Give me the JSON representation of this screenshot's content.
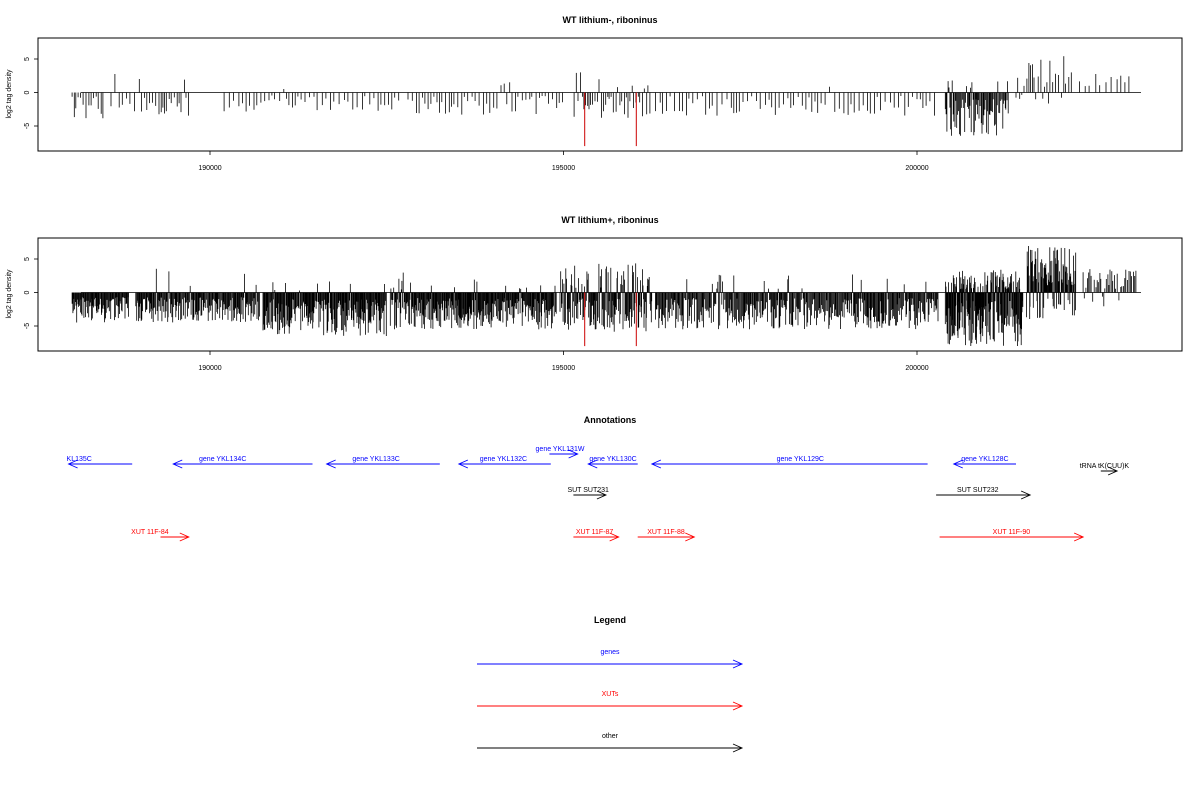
{
  "chart_data": [
    {
      "type": "bar",
      "title": "WT lithium-, riboninus",
      "xlabel": "",
      "ylabel": "log2 tag density",
      "xlim": [
        188000,
        203600
      ],
      "ylim": [
        -8.6,
        8.2
      ],
      "x_ticks": [
        190000,
        195000,
        200000
      ],
      "x_tick_labels": [
        "190000",
        "195000",
        "200000"
      ],
      "y_ticks": [
        -5,
        0,
        5
      ],
      "y_tick_labels": [
        "-5",
        "0",
        "5"
      ],
      "baseline_range": [
        188100,
        203100
      ],
      "highlighted_bars": [
        {
          "x": 195300,
          "value": -8.0,
          "color": "#cc0000"
        },
        {
          "x": 196030,
          "value": -8.0,
          "color": "#cc0000"
        }
      ],
      "segments": [
        {
          "start": 188050,
          "end": 188500,
          "step": 30,
          "min": -4.0,
          "max": 0,
          "pos_frac": 0.0
        },
        {
          "start": 188600,
          "end": 188950,
          "step": 50,
          "min": -3.0,
          "max": 3.0,
          "pos_frac": 0.25
        },
        {
          "start": 189000,
          "end": 189700,
          "step": 35,
          "min": -3.5,
          "max": 3.0,
          "pos_frac": 0.15
        },
        {
          "start": 190200,
          "end": 192700,
          "step": 55,
          "min": -3.0,
          "max": 2.0,
          "pos_frac": 0.04
        },
        {
          "start": 192800,
          "end": 195000,
          "step": 45,
          "min": -3.5,
          "max": 2.0,
          "pos_frac": 0.05
        },
        {
          "start": 195150,
          "end": 196250,
          "step": 28,
          "min": -3.8,
          "max": 3.2,
          "pos_frac": 0.22
        },
        {
          "start": 196300,
          "end": 200300,
          "step": 55,
          "min": -3.5,
          "max": 2.2,
          "pos_frac": 0.06
        },
        {
          "start": 200400,
          "end": 201300,
          "step": 12,
          "min": -6.5,
          "max": 3.0,
          "pos_frac": 0.08
        },
        {
          "start": 201400,
          "end": 202200,
          "step": 35,
          "min": -2.0,
          "max": 5.5,
          "pos_frac": 0.65
        },
        {
          "start": 202300,
          "end": 203000,
          "step": 70,
          "min": 0,
          "max": 3.5,
          "pos_frac": 1.0
        }
      ]
    },
    {
      "type": "bar",
      "title": "WT lithium+, riboninus",
      "xlabel": "",
      "ylabel": "log2 tag density",
      "xlim": [
        188000,
        203600
      ],
      "ylim": [
        -8.6,
        8.2
      ],
      "x_ticks": [
        190000,
        195000,
        200000
      ],
      "x_tick_labels": [
        "190000",
        "195000",
        "200000"
      ],
      "y_ticks": [
        -5,
        0,
        5
      ],
      "y_tick_labels": [
        "-5",
        "0",
        "5"
      ],
      "baseline_range": [
        188100,
        203100
      ],
      "highlighted_bars": [
        {
          "x": 195300,
          "value": -8.0,
          "color": "#cc0000"
        },
        {
          "x": 196030,
          "value": -8.0,
          "color": "#cc0000"
        }
      ],
      "segments": [
        {
          "start": 188050,
          "end": 188850,
          "step": 9,
          "min": -4.5,
          "max": 0,
          "pos_frac": 0.0
        },
        {
          "start": 188950,
          "end": 190700,
          "step": 10,
          "min": -4.5,
          "max": 4.0,
          "pos_frac": 0.05
        },
        {
          "start": 190750,
          "end": 192500,
          "step": 9,
          "min": -6.5,
          "max": 2.0,
          "pos_frac": 0.03
        },
        {
          "start": 192550,
          "end": 194900,
          "step": 9,
          "min": -5.5,
          "max": 3.0,
          "pos_frac": 0.05
        },
        {
          "start": 194950,
          "end": 196250,
          "step": 9,
          "min": -6.0,
          "max": 4.5,
          "pos_frac": 0.3
        },
        {
          "start": 196300,
          "end": 200300,
          "step": 11,
          "min": -5.5,
          "max": 3.0,
          "pos_frac": 0.08
        },
        {
          "start": 200400,
          "end": 201500,
          "step": 5,
          "min": -8.0,
          "max": 3.5,
          "pos_frac": 0.3
        },
        {
          "start": 201550,
          "end": 202250,
          "step": 7,
          "min": -4.0,
          "max": 7.0,
          "pos_frac": 0.7
        },
        {
          "start": 202350,
          "end": 203100,
          "step": 20,
          "min": -3.0,
          "max": 3.5,
          "pos_frac": 0.85
        }
      ]
    }
  ],
  "annotations": {
    "title": "Annotations",
    "xlim": [
      188000,
      203600
    ],
    "features": [
      {
        "label": "KL135C",
        "start": 188000,
        "end": 188900,
        "dir": "left",
        "color": "#0000ff",
        "row": 1,
        "label_pos": 188150
      },
      {
        "label": "gene YKL134C",
        "start": 189480,
        "end": 191450,
        "dir": "left",
        "color": "#0000ff",
        "row": 1,
        "label_pos": 190180
      },
      {
        "label": "gene YKL133C",
        "start": 191650,
        "end": 193250,
        "dir": "left",
        "color": "#0000ff",
        "row": 1,
        "label_pos": 192350
      },
      {
        "label": "gene YKL132C",
        "start": 193520,
        "end": 194820,
        "dir": "left",
        "color": "#0000ff",
        "row": 1,
        "label_pos": 194150
      },
      {
        "label": "gene YKL131W",
        "start": 194800,
        "end": 195200,
        "dir": "right",
        "color": "#0000ff",
        "row": 0,
        "label_pos": 194950
      },
      {
        "label": "gene YKL130C",
        "start": 195350,
        "end": 196050,
        "dir": "left",
        "color": "#0000ff",
        "row": 1,
        "label_pos": 195700
      },
      {
        "label": "gene YKL129C",
        "start": 196250,
        "end": 200150,
        "dir": "left",
        "color": "#0000ff",
        "row": 1,
        "label_pos": 198350
      },
      {
        "label": "gene YKL128C",
        "start": 200520,
        "end": 201400,
        "dir": "left",
        "color": "#0000ff",
        "row": 1,
        "label_pos": 200960
      },
      {
        "label": "tRNA tK(CUU)K",
        "start": 202600,
        "end": 202830,
        "dir": "right",
        "color": "#000000",
        "row": 2,
        "label_pos": 202650
      },
      {
        "label": "SUT SUT231",
        "start": 195140,
        "end": 195600,
        "dir": "right",
        "color": "#000000",
        "row": 3,
        "label_pos": 195350
      },
      {
        "label": "SUT SUT232",
        "start": 200270,
        "end": 201600,
        "dir": "right",
        "color": "#000000",
        "row": 3,
        "label_pos": 200860
      },
      {
        "label": "XUT 11F-84",
        "start": 189300,
        "end": 189700,
        "dir": "right",
        "color": "#ff0000",
        "row": 4,
        "label_pos": 189150
      },
      {
        "label": "XUT 11F-87",
        "start": 195140,
        "end": 195780,
        "dir": "right",
        "color": "#ff0000",
        "row": 4,
        "label_pos": 195440
      },
      {
        "label": "XUT 11F-88",
        "start": 196050,
        "end": 196850,
        "dir": "right",
        "color": "#ff0000",
        "row": 4,
        "label_pos": 196450
      },
      {
        "label": "XUT 11F-90",
        "start": 200320,
        "end": 202350,
        "dir": "right",
        "color": "#ff0000",
        "row": 4,
        "label_pos": 201335
      }
    ]
  },
  "legend": {
    "title": "Legend",
    "items": [
      {
        "label": "genes",
        "color": "#0000ff"
      },
      {
        "label": "XUTs",
        "color": "#ff0000"
      },
      {
        "label": "other",
        "color": "#000000"
      }
    ]
  }
}
